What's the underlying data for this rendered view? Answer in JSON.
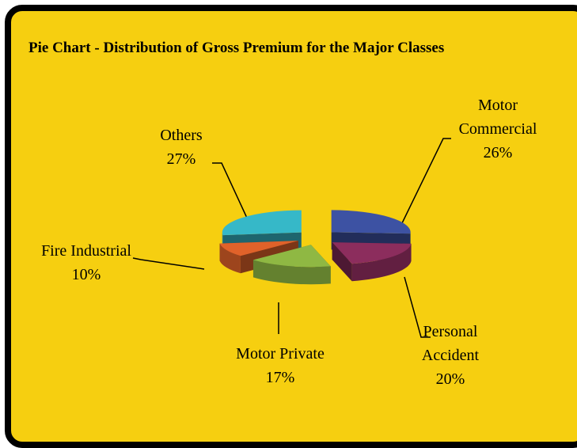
{
  "chart_data": {
    "type": "pie3d",
    "title": "Pie Chart - Distribution of Gross Premium for the Major Classes",
    "categories": [
      "Motor Commercial",
      "Personal Accident",
      "Motor Private",
      "Fire Industrial",
      "Others"
    ],
    "values": [
      26,
      20,
      17,
      10,
      27
    ],
    "value_labels": [
      "26%",
      "20%",
      "17%",
      "10%",
      "27%"
    ],
    "colors": [
      "#3d52a3",
      "#8c2d5d",
      "#8fb843",
      "#e0622a",
      "#36b8c8"
    ]
  }
}
